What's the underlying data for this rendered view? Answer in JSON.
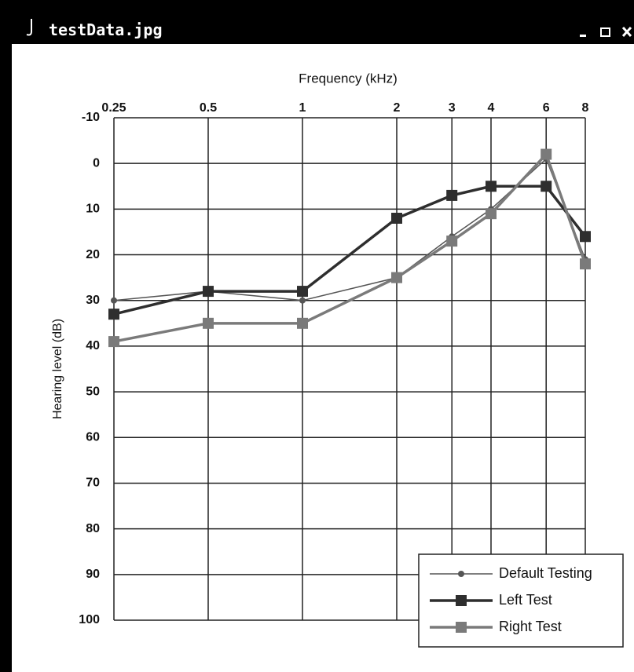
{
  "window": {
    "title": "testData.jpg"
  },
  "chart_data": {
    "type": "line",
    "xlabel": "Frequency (kHz)",
    "ylabel": "Hearing level (dB)",
    "x": [
      0.25,
      0.5,
      1,
      2,
      3,
      4,
      6,
      8
    ],
    "xscale": "log",
    "xlim": [
      0.25,
      8
    ],
    "xticks": [
      0.25,
      0.5,
      1,
      2,
      3,
      4,
      6,
      8
    ],
    "ylim": [
      100,
      -10
    ],
    "yticks": [
      -10,
      0,
      10,
      20,
      30,
      40,
      50,
      60,
      70,
      80,
      90,
      100
    ],
    "grid": true,
    "legend": "lower right",
    "series": [
      {
        "name": "Default Testing",
        "color": "#555555",
        "values": [
          30,
          28,
          30,
          25,
          16,
          10,
          -1,
          21
        ]
      },
      {
        "name": "Left Test",
        "color": "#2e2e2e",
        "values": [
          33,
          28,
          28,
          12,
          7,
          5,
          5,
          16
        ]
      },
      {
        "name": "Right Test",
        "color": "#7a7a7a",
        "values": [
          39,
          35,
          35,
          25,
          17,
          11,
          -2,
          22
        ]
      }
    ]
  }
}
